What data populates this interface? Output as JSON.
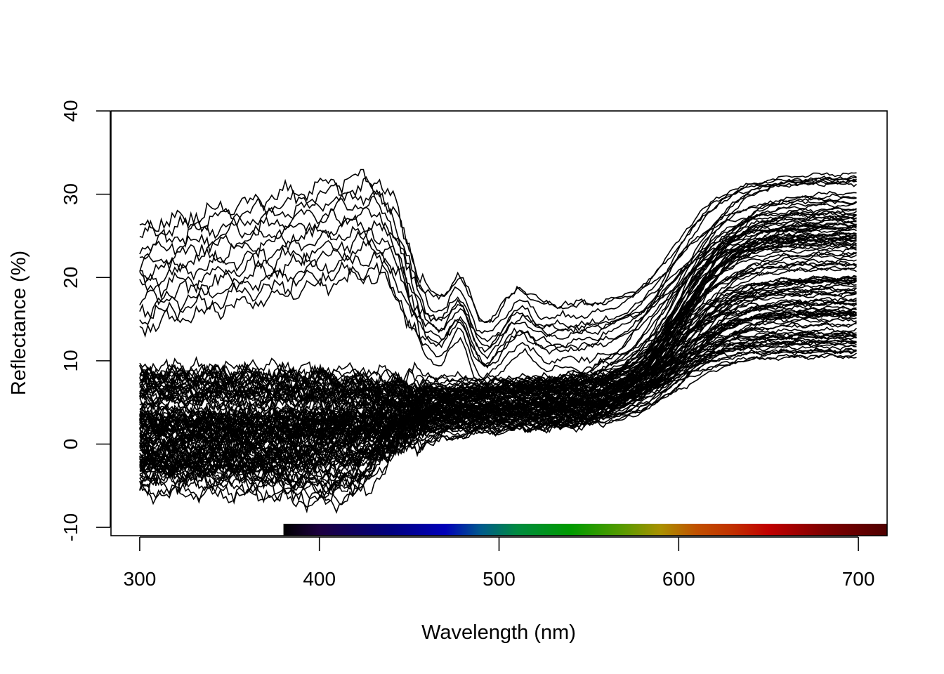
{
  "chart_data": {
    "type": "line",
    "title": "",
    "xlabel": "Wavelength (nm)",
    "ylabel": "Reflectance (%)",
    "xlim": [
      284,
      716
    ],
    "ylim": [
      -11,
      40
    ],
    "x_ticks": [
      "300",
      "400",
      "500",
      "600",
      "700"
    ],
    "y_ticks": [
      "-10",
      "0",
      "10",
      "20",
      "30",
      "40"
    ],
    "grid": false,
    "legend": "none",
    "x_range_of_series": [
      300,
      700
    ],
    "series_count": 118,
    "series_groups": [
      {
        "shape": "high-uv",
        "count": 12,
        "uv_reflectance_range": [
          14,
          26
        ],
        "red_reflectance_range": [
          20,
          38
        ]
      },
      {
        "shape": "flat-low",
        "count": 88,
        "uv_reflectance_range": [
          -3,
          9
        ],
        "red_reflectance_range": [
          11,
          34
        ]
      },
      {
        "shape": "negative-uv",
        "count": 18,
        "uv_reflectance_range": [
          -6,
          0
        ],
        "red_reflectance_range": [
          12,
          30
        ]
      }
    ],
    "color_bar": {
      "range_nm": [
        380,
        716
      ],
      "stops": [
        {
          "nm": 380,
          "color": "#000000"
        },
        {
          "nm": 400,
          "color": "#1c0040"
        },
        {
          "nm": 440,
          "color": "#000080"
        },
        {
          "nm": 470,
          "color": "#0000b8"
        },
        {
          "nm": 490,
          "color": "#005a8c"
        },
        {
          "nm": 510,
          "color": "#008a40"
        },
        {
          "nm": 540,
          "color": "#009a00"
        },
        {
          "nm": 570,
          "color": "#5c9a00"
        },
        {
          "nm": 590,
          "color": "#aa9000"
        },
        {
          "nm": 610,
          "color": "#c05000"
        },
        {
          "nm": 630,
          "color": "#c03000"
        },
        {
          "nm": 650,
          "color": "#c00000"
        },
        {
          "nm": 680,
          "color": "#800000"
        },
        {
          "nm": 716,
          "color": "#500000"
        }
      ]
    }
  }
}
